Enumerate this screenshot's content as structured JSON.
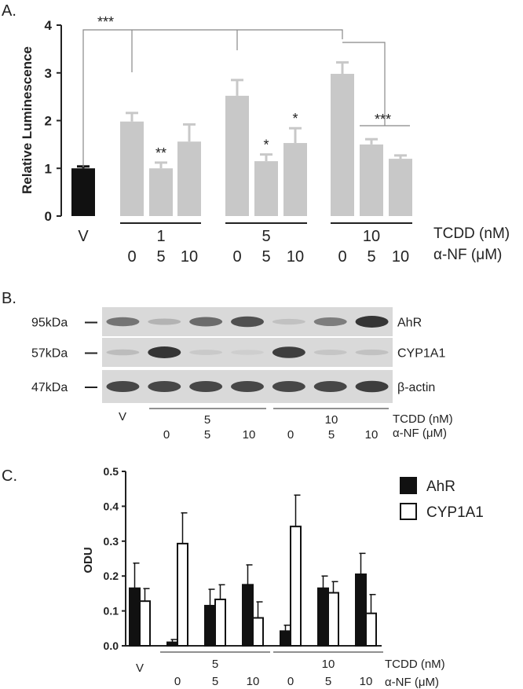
{
  "panel_labels": {
    "a": "A.",
    "b": "B.",
    "c": "C."
  },
  "colors": {
    "bar_gray": "#c8c8c8",
    "bar_black": "#111111",
    "bracket": "#888888",
    "blot_bg": "#d9d9d9"
  },
  "chart_data": [
    {
      "type": "bar",
      "panel": "A",
      "ylabel": "Relative Luminescence",
      "ylim": [
        0,
        4
      ],
      "yticks": [
        "0",
        "1",
        "2",
        "3",
        "4"
      ],
      "bars": [
        {
          "label": "V",
          "value": 1.0,
          "err": 0.04,
          "color": "black",
          "sig": ""
        },
        {
          "label": "1-0",
          "value": 1.98,
          "err": 0.18,
          "color": "gray",
          "sig": ""
        },
        {
          "label": "1-5",
          "value": 1.0,
          "err": 0.12,
          "color": "gray",
          "sig": "**"
        },
        {
          "label": "1-10",
          "value": 1.56,
          "err": 0.36,
          "color": "gray",
          "sig": ""
        },
        {
          "label": "5-0",
          "value": 2.52,
          "err": 0.33,
          "color": "gray",
          "sig": ""
        },
        {
          "label": "5-5",
          "value": 1.15,
          "err": 0.14,
          "color": "gray",
          "sig": "*"
        },
        {
          "label": "5-10",
          "value": 1.53,
          "err": 0.31,
          "color": "gray",
          "sig": "*"
        },
        {
          "label": "10-0",
          "value": 2.98,
          "err": 0.24,
          "color": "gray",
          "sig": ""
        },
        {
          "label": "10-5",
          "value": 1.5,
          "err": 0.11,
          "color": "gray",
          "sig": ""
        },
        {
          "label": "10-10",
          "value": 1.2,
          "err": 0.07,
          "color": "gray",
          "sig": ""
        }
      ],
      "sig_top": "***",
      "sig_right": "***",
      "x_v_label": "V",
      "tcdd_groups": [
        "1",
        "5",
        "10"
      ],
      "anf_values": [
        "0",
        "5",
        "10"
      ],
      "tcdd_label": "TCDD (nM)",
      "anf_label": "α-NF (μM)"
    },
    {
      "type": "bar",
      "panel": "C",
      "ylabel": "ODU",
      "ylim": [
        0,
        0.5
      ],
      "yticks": [
        "0.0",
        "0.1",
        "0.2",
        "0.3",
        "0.4",
        "0.5"
      ],
      "categories": [
        "V",
        "5-0",
        "5-5",
        "5-10",
        "10-0",
        "10-5",
        "10-10"
      ],
      "series": [
        {
          "name": "AhR",
          "values": [
            0.165,
            0.01,
            0.115,
            0.175,
            0.042,
            0.165,
            0.205
          ],
          "errors": [
            0.072,
            0.008,
            0.047,
            0.057,
            0.017,
            0.035,
            0.06
          ]
        },
        {
          "name": "CYP1A1",
          "values": [
            0.128,
            0.293,
            0.133,
            0.08,
            0.342,
            0.152,
            0.093
          ],
          "errors": [
            0.036,
            0.088,
            0.042,
            0.046,
            0.09,
            0.032,
            0.054
          ]
        }
      ],
      "x_v_label": "V",
      "tcdd_groups": [
        "5",
        "10"
      ],
      "anf_values": [
        "0",
        "5",
        "10"
      ],
      "tcdd_label": "TCDD (nM)",
      "anf_label": "α-NF (μM)"
    }
  ],
  "blot": {
    "rows": [
      {
        "marker": "95kDa",
        "label": "AhR",
        "intensities": [
          0.55,
          0.2,
          0.6,
          0.75,
          0.12,
          0.5,
          0.9
        ]
      },
      {
        "marker": "57kDa",
        "label": "CYP1A1",
        "intensities": [
          0.15,
          0.9,
          0.08,
          0.05,
          0.85,
          0.1,
          0.12
        ]
      },
      {
        "marker": "47kDa",
        "label": "β-actin",
        "intensities": [
          0.8,
          0.8,
          0.8,
          0.8,
          0.8,
          0.8,
          0.85
        ]
      }
    ],
    "x_v_label": "V",
    "tcdd_groups": [
      "5",
      "10"
    ],
    "anf_values": [
      "0",
      "5",
      "10"
    ],
    "tcdd_label": "TCDD (nM)",
    "anf_label": "α-NF (μM)"
  }
}
